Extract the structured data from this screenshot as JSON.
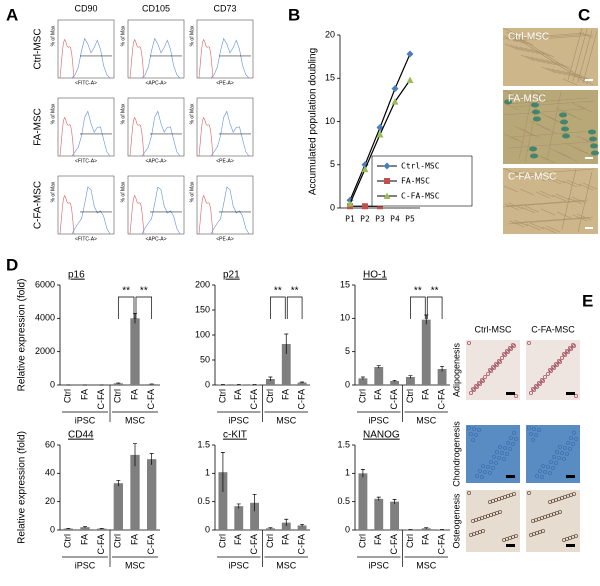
{
  "panel_labels": [
    "A",
    "B",
    "C",
    "D",
    "E"
  ],
  "flow": {
    "columns": [
      "CD90",
      "CD105",
      "CD73"
    ],
    "rows": [
      "Ctrl-MSC",
      "FA-MSC",
      "C-FA-MSC"
    ],
    "x_labels": [
      "<FITC-A>",
      "<APC-A>",
      "<PE-A>"
    ],
    "y_label": "% of Max"
  },
  "senescence": {
    "images": [
      "Ctrl-MSC",
      "FA-MSC",
      "C-FA-MSC"
    ]
  },
  "differentiation": {
    "columns": [
      "Ctrl-MSC",
      "C-FA-MSC"
    ],
    "rows": [
      "Adipogenesis",
      "Chondrogenesis",
      "Osteogenesis"
    ]
  },
  "chart_data": [
    {
      "type": "line",
      "y_label": "Accumulated population doubling",
      "categories": [
        "P1",
        "P2",
        "P3",
        "P4",
        "P5"
      ],
      "ylim": [
        0,
        20
      ],
      "yticks": [
        0,
        5,
        10,
        15,
        20
      ],
      "series": [
        {
          "name": "Ctrl-MSC",
          "color": "#4a7ebb",
          "marker": "diamond",
          "values": [
            0.9,
            5,
            9.3,
            13.8,
            17.8
          ]
        },
        {
          "name": "FA-MSC",
          "color": "#c0504d",
          "marker": "square",
          "values": [
            0.2,
            0.2,
            0.2,
            null,
            null
          ]
        },
        {
          "name": "C-FA-MSC",
          "color": "#9bbb59",
          "marker": "triangle",
          "values": [
            0.5,
            4.5,
            8.5,
            12.3,
            14.8
          ]
        }
      ]
    },
    {
      "type": "bar",
      "title": "p16",
      "y_label": "Relative expression (fold)",
      "categories": [
        "Ctrl",
        "FA",
        "C-FA",
        "Ctrl",
        "FA",
        "C-FA"
      ],
      "groups": [
        "iPSC",
        "MSC"
      ],
      "values": [
        1,
        1,
        1,
        100,
        4000,
        50
      ],
      "errors": [
        0,
        0,
        0,
        20,
        300,
        10
      ],
      "ylim": [
        0,
        6000
      ],
      "yticks": [
        0,
        2000,
        4000,
        6000
      ],
      "color": "#7f7f7f",
      "annotations": [
        "**",
        "**"
      ]
    },
    {
      "type": "bar",
      "title": "p21",
      "categories": [
        "Ctrl",
        "FA",
        "C-FA",
        "Ctrl",
        "FA",
        "C-FA"
      ],
      "groups": [
        "iPSC",
        "MSC"
      ],
      "values": [
        1,
        1,
        1,
        12,
        82,
        5
      ],
      "errors": [
        0,
        0,
        0,
        4,
        20,
        1
      ],
      "ylim": [
        0,
        200
      ],
      "yticks": [
        0,
        50,
        100,
        150,
        200
      ],
      "color": "#7f7f7f",
      "annotations": [
        "**",
        "**"
      ]
    },
    {
      "type": "bar",
      "title": "HO-1",
      "categories": [
        "Ctrl",
        "FA",
        "C-FA",
        "Ctrl",
        "FA",
        "C-FA"
      ],
      "groups": [
        "iPSC",
        "MSC"
      ],
      "values": [
        1,
        2.7,
        0.6,
        1.2,
        9.8,
        2.4
      ],
      "errors": [
        0.2,
        0.2,
        0.1,
        0.2,
        0.7,
        0.4
      ],
      "ylim": [
        0,
        15
      ],
      "yticks": [
        0,
        5,
        10,
        15
      ],
      "color": "#7f7f7f",
      "annotations": [
        "**",
        "**"
      ]
    },
    {
      "type": "bar",
      "title": "CD44",
      "y_label": "Relative expression (fold)",
      "categories": [
        "Ctrl",
        "FA",
        "C-FA",
        "Ctrl",
        "FA",
        "C-FA"
      ],
      "groups": [
        "iPSC",
        "MSC"
      ],
      "values": [
        1,
        2,
        1,
        33,
        53,
        50
      ],
      "errors": [
        0.2,
        0.5,
        0.2,
        2,
        8,
        4
      ],
      "ylim": [
        0,
        60
      ],
      "yticks": [
        0,
        20,
        40,
        60
      ],
      "color": "#7f7f7f"
    },
    {
      "type": "bar",
      "title": "c-KIT",
      "categories": [
        "Ctrl",
        "FA",
        "C-FA",
        "Ctrl",
        "FA",
        "C-FA"
      ],
      "groups": [
        "iPSC",
        "MSC"
      ],
      "values": [
        1.02,
        0.42,
        0.48,
        0.03,
        0.13,
        0.08
      ],
      "errors": [
        0.35,
        0.04,
        0.15,
        0.01,
        0.06,
        0.02
      ],
      "ylim": [
        0,
        1.5
      ],
      "yticks": [
        0,
        0.5,
        1,
        1.5
      ],
      "color": "#7f7f7f"
    },
    {
      "type": "bar",
      "title": "NANOG",
      "categories": [
        "Ctrl",
        "FA",
        "C-FA",
        "Ctrl",
        "FA",
        "C-FA"
      ],
      "groups": [
        "iPSC",
        "MSC"
      ],
      "values": [
        1,
        0.55,
        0.5,
        0.01,
        0.03,
        0.01
      ],
      "errors": [
        0.07,
        0.03,
        0.04,
        0,
        0.01,
        0
      ],
      "ylim": [
        0,
        1.5
      ],
      "yticks": [
        0,
        0.5,
        1,
        1.5
      ],
      "color": "#7f7f7f"
    }
  ]
}
